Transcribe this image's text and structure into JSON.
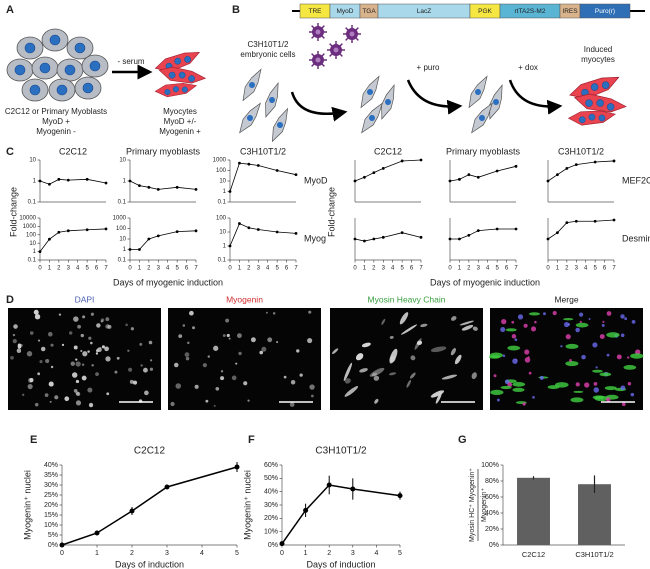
{
  "panel_a": {
    "label": "A",
    "before": [
      "C2C12 or Primary Myoblasts",
      "MyoD +",
      "Myogenin -"
    ],
    "treatment": "- serum",
    "after": [
      "Myocytes",
      "MyoD +/-",
      "Myogenin +"
    ]
  },
  "panel_b": {
    "label": "B",
    "construct": [
      "TRE",
      "MyoD",
      "TGA",
      "LacZ",
      "PGK",
      "rtTA2S-M2",
      "IRES",
      "Puro(r)"
    ],
    "cell_line": [
      "C3H10T1/2",
      "embryonic cells"
    ],
    "steps": [
      "+ puro",
      "+ dox"
    ],
    "result": [
      "Induced",
      "myocytes"
    ]
  },
  "panel_c": {
    "label": "C",
    "groups": [
      {
        "y_label": "Fold-change",
        "x_label": "Days of myogenic induction"
      },
      {
        "y_label": "Fold-change",
        "x_label": "Days of myogenic induction"
      }
    ]
  },
  "panel_d": {
    "label": "D",
    "images": [
      {
        "title": "DAPI",
        "title_color": "#4a5fb0"
      },
      {
        "title": "Myogenin",
        "title_color": "#d03030"
      },
      {
        "title": "Myosin Heavy Chain",
        "title_color": "#3aa040"
      },
      {
        "title": "Merge",
        "title_color": "#222222"
      }
    ]
  },
  "chart_data": [
    {
      "type": "line",
      "log_y": true,
      "title": "C2C12",
      "x": [
        0,
        1,
        2,
        3,
        5,
        7
      ],
      "values": [
        1,
        0.7,
        1.2,
        1.1,
        1.2,
        0.8
      ],
      "xlim": [
        0,
        7
      ],
      "ylim": [
        0.1,
        10
      ],
      "yticks": [
        0.1,
        1,
        10
      ],
      "color": "#000000"
    },
    {
      "type": "line",
      "log_y": true,
      "title": "Primary myoblasts",
      "x": [
        0,
        1,
        2,
        3,
        5,
        7
      ],
      "values": [
        1,
        0.6,
        0.5,
        0.4,
        0.5,
        0.4
      ],
      "xlim": [
        0,
        7
      ],
      "ylim": [
        0.1,
        10
      ],
      "yticks": [
        0.1,
        1,
        10
      ],
      "color": "#000000"
    },
    {
      "type": "line",
      "log_y": true,
      "title": "C3H10T1/2",
      "row_label": "MyoD",
      "x": [
        0,
        1,
        2,
        3,
        5,
        7
      ],
      "values": [
        1,
        500,
        400,
        300,
        100,
        40
      ],
      "xlim": [
        0,
        7
      ],
      "ylim": [
        0.1,
        1000
      ],
      "yticks": [
        0.1,
        1,
        10,
        100,
        1000
      ],
      "color": "#000000"
    },
    {
      "type": "line",
      "log_y": true,
      "x": [
        0,
        1,
        2,
        3,
        5,
        7
      ],
      "values": [
        1,
        30,
        200,
        300,
        400,
        500
      ],
      "xlim": [
        0,
        7
      ],
      "xticks": [
        0,
        1,
        2,
        3,
        4,
        5,
        6,
        7
      ],
      "ylim": [
        0.1,
        10000
      ],
      "yticks": [
        0.1,
        1,
        10,
        100,
        1000,
        10000
      ],
      "color": "#000000"
    },
    {
      "type": "line",
      "log_y": true,
      "x": [
        0,
        1,
        2,
        3,
        5,
        7
      ],
      "values": [
        1,
        1,
        10,
        20,
        50,
        60
      ],
      "xlim": [
        0,
        7
      ],
      "xticks": [
        0,
        1,
        2,
        3,
        4,
        5,
        6,
        7
      ],
      "ylim": [
        0.1,
        1000
      ],
      "yticks": [
        0.1,
        1,
        10,
        100,
        1000
      ],
      "color": "#000000"
    },
    {
      "type": "line",
      "log_y": true,
      "row_label": "Myog",
      "x": [
        0,
        1,
        2,
        3,
        5,
        7
      ],
      "values": [
        1,
        40,
        20,
        15,
        10,
        8
      ],
      "xlim": [
        0,
        7
      ],
      "xticks": [
        0,
        1,
        2,
        3,
        4,
        5,
        6,
        7
      ],
      "ylim": [
        0.1,
        100
      ],
      "yticks": [
        0.1,
        1,
        10,
        100
      ],
      "color": "#000000"
    },
    {
      "type": "line",
      "log_y": true,
      "title": "C2C12",
      "x": [
        0,
        1,
        2,
        3,
        5,
        7
      ],
      "values": [
        1,
        1.5,
        2.5,
        4,
        9,
        10
      ],
      "xlim": [
        0,
        7
      ],
      "ylim": [
        0.1,
        10
      ],
      "color": "#000000"
    },
    {
      "type": "line",
      "log_y": true,
      "title": "Primary myoblasts",
      "x": [
        0,
        1,
        2,
        3,
        5,
        7
      ],
      "values": [
        1,
        1.2,
        2,
        1.5,
        3,
        5
      ],
      "xlim": [
        0,
        7
      ],
      "ylim": [
        0.1,
        10
      ],
      "color": "#000000"
    },
    {
      "type": "line",
      "log_y": true,
      "title": "C3H10T1/2",
      "row_label": "MEF2C",
      "x": [
        0,
        1,
        2,
        3,
        5,
        7
      ],
      "values": [
        1,
        2,
        4,
        6,
        8,
        9
      ],
      "xlim": [
        0,
        7
      ],
      "ylim": [
        0.1,
        10
      ],
      "color": "#000000"
    },
    {
      "type": "line",
      "log_y": true,
      "x": [
        0,
        1,
        2,
        3,
        5,
        7
      ],
      "values": [
        1,
        0.8,
        1,
        1.2,
        2,
        1.2
      ],
      "xlim": [
        0,
        7
      ],
      "xticks": [
        0,
        1,
        2,
        3,
        4,
        5,
        6,
        7
      ],
      "ylim": [
        0.1,
        10
      ],
      "color": "#000000"
    },
    {
      "type": "line",
      "log_y": true,
      "x": [
        0,
        1,
        2,
        3,
        5,
        7
      ],
      "values": [
        1,
        1,
        1.5,
        2.5,
        3,
        3
      ],
      "xlim": [
        0,
        7
      ],
      "xticks": [
        0,
        1,
        2,
        3,
        4,
        5,
        6,
        7
      ],
      "ylim": [
        0.1,
        10
      ],
      "color": "#000000"
    },
    {
      "type": "line",
      "log_y": true,
      "row_label": "Desmin",
      "x": [
        0,
        1,
        2,
        3,
        5,
        7
      ],
      "values": [
        1,
        2,
        6,
        7,
        7,
        8
      ],
      "xlim": [
        0,
        7
      ],
      "xticks": [
        0,
        1,
        2,
        3,
        4,
        5,
        6,
        7
      ],
      "ylim": [
        0.1,
        10
      ],
      "color": "#000000"
    },
    {
      "type": "line",
      "panel_label": "E",
      "title": "C2C12",
      "y_label": "Myogenin⁺ nuclei",
      "x_label": "Days of induction",
      "x": [
        0,
        1,
        2,
        3,
        5
      ],
      "values": [
        0,
        6,
        17,
        29,
        39
      ],
      "errors": [
        0.5,
        1,
        2,
        0.5,
        2.5
      ],
      "xlim": [
        0,
        5
      ],
      "xticks": [
        0,
        1,
        2,
        3,
        4,
        5
      ],
      "ylim": [
        0,
        40
      ],
      "yticks": [
        {
          "value": 0,
          "label": "0%"
        },
        {
          "value": 5,
          "label": "5%"
        },
        {
          "value": 10,
          "label": "10%"
        },
        {
          "value": 15,
          "label": "15%"
        },
        {
          "value": 20,
          "label": "20%"
        },
        {
          "value": 25,
          "label": "25%"
        },
        {
          "value": 30,
          "label": "30%"
        },
        {
          "value": 35,
          "label": "35%"
        },
        {
          "value": 40,
          "label": "40%"
        }
      ],
      "color": "#000000"
    },
    {
      "type": "line",
      "panel_label": "F",
      "title": "C3H10T1/2",
      "y_label": "Myogenin⁺ nuclei",
      "x_label": "Days of induction",
      "x": [
        0,
        1,
        2,
        3,
        5
      ],
      "values": [
        1,
        26,
        45,
        42,
        37
      ],
      "errors": [
        1,
        5,
        7,
        8,
        3
      ],
      "xlim": [
        0,
        5
      ],
      "xticks": [
        0,
        1,
        2,
        3,
        4,
        5
      ],
      "ylim": [
        0,
        60
      ],
      "yticks": [
        {
          "value": 0,
          "label": "0%"
        },
        {
          "value": 10,
          "label": "10%"
        },
        {
          "value": 20,
          "label": "20%"
        },
        {
          "value": 30,
          "label": "30%"
        },
        {
          "value": 40,
          "label": "40%"
        },
        {
          "value": 50,
          "label": "50%"
        },
        {
          "value": 60,
          "label": "60%"
        }
      ],
      "color": "#000000"
    },
    {
      "type": "bar",
      "panel_label": "G",
      "y_label_numerator": "Myosin HC⁺ Myogenin⁺",
      "y_label_denominator": "Myogenin⁺",
      "categories": [
        "C2C12",
        "C3H10T1/2"
      ],
      "values": [
        84,
        76
      ],
      "errors": [
        2,
        11
      ],
      "ylim": [
        0,
        100
      ],
      "yticks": [
        {
          "value": 0,
          "label": "0%"
        },
        {
          "value": 20,
          "label": "20%"
        },
        {
          "value": 40,
          "label": "40%"
        },
        {
          "value": 60,
          "label": "60%"
        },
        {
          "value": 80,
          "label": "80%"
        },
        {
          "value": 100,
          "label": "100%"
        }
      ],
      "color": "#606060"
    }
  ]
}
